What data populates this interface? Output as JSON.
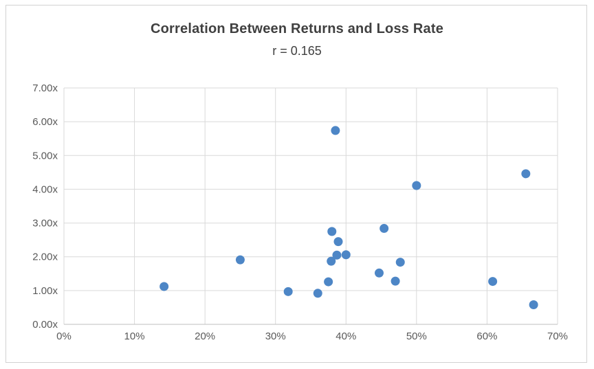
{
  "chart_data": {
    "type": "scatter",
    "title": "Correlation Between Returns and Loss Rate",
    "subtitle": "r = 0.165",
    "xlabel": "",
    "ylabel": "",
    "xlim": [
      0,
      0.7
    ],
    "ylim": [
      0,
      7
    ],
    "x_tick_values": [
      0,
      0.1,
      0.2,
      0.3,
      0.4,
      0.5,
      0.6,
      0.7
    ],
    "x_tick_labels": [
      "0%",
      "10%",
      "20%",
      "30%",
      "40%",
      "50%",
      "60%",
      "70%"
    ],
    "y_tick_values": [
      0,
      1,
      2,
      3,
      4,
      5,
      6,
      7
    ],
    "y_tick_labels": [
      "0.00x",
      "1.00x",
      "2.00x",
      "3.00x",
      "4.00x",
      "5.00x",
      "6.00x",
      "7.00x"
    ],
    "grid": true,
    "legend": false,
    "marker_color": "#4d86c6",
    "gridline_color": "#d9d9d9",
    "axis_line_color": "#bfbfbf",
    "tick_label_color": "#595959",
    "title_color": "#404040",
    "points": [
      {
        "x": 0.142,
        "y": 1.12
      },
      {
        "x": 0.25,
        "y": 1.91
      },
      {
        "x": 0.318,
        "y": 0.97
      },
      {
        "x": 0.36,
        "y": 0.92
      },
      {
        "x": 0.375,
        "y": 1.26
      },
      {
        "x": 0.379,
        "y": 1.87
      },
      {
        "x": 0.38,
        "y": 2.75
      },
      {
        "x": 0.385,
        "y": 5.74
      },
      {
        "x": 0.387,
        "y": 2.05
      },
      {
        "x": 0.389,
        "y": 2.45
      },
      {
        "x": 0.4,
        "y": 2.06
      },
      {
        "x": 0.447,
        "y": 1.52
      },
      {
        "x": 0.454,
        "y": 2.84
      },
      {
        "x": 0.47,
        "y": 1.28
      },
      {
        "x": 0.477,
        "y": 1.84
      },
      {
        "x": 0.5,
        "y": 4.11
      },
      {
        "x": 0.608,
        "y": 1.27
      },
      {
        "x": 0.655,
        "y": 4.46
      },
      {
        "x": 0.666,
        "y": 0.58
      }
    ]
  }
}
